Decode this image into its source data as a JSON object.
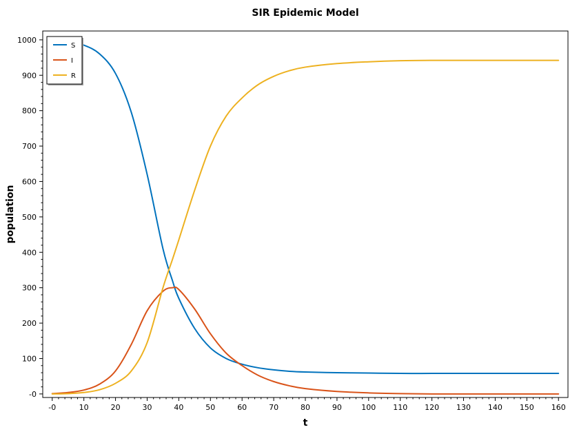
{
  "chart_data": {
    "type": "line",
    "title": "SIR Epidemic Model",
    "xlabel": "t",
    "ylabel": "population",
    "xlim": [
      -3,
      163
    ],
    "ylim": [
      -10,
      1025
    ],
    "x_ticks": [
      0,
      10,
      20,
      30,
      40,
      50,
      60,
      70,
      80,
      90,
      100,
      110,
      120,
      130,
      140,
      150,
      160
    ],
    "x_tick_labels": [
      "-0",
      "10",
      "20",
      "30",
      "40",
      "50",
      "60",
      "70",
      "80",
      "90",
      "100",
      "110",
      "120",
      "130",
      "140",
      "150",
      "160"
    ],
    "y_ticks": [
      0,
      100,
      200,
      300,
      400,
      500,
      600,
      700,
      800,
      900,
      1000
    ],
    "y_tick_labels": [
      "-0",
      "100",
      "200",
      "300",
      "400",
      "500",
      "600",
      "700",
      "800",
      "900",
      "1000"
    ],
    "grid": false,
    "legend_position": "top-left",
    "x": [
      0,
      5,
      10,
      15,
      20,
      25,
      30,
      35,
      38,
      40,
      45,
      50,
      55,
      60,
      65,
      70,
      75,
      80,
      90,
      100,
      110,
      120,
      130,
      140,
      150,
      160
    ],
    "series": [
      {
        "name": "S",
        "color": "#0072BD",
        "values": [
          999,
          995,
          985,
          960,
          905,
          795,
          620,
          410,
          320,
          270,
          185,
          130,
          100,
          84,
          74,
          68,
          64,
          62,
          60,
          59,
          58,
          58,
          58,
          58,
          58,
          58
        ]
      },
      {
        "name": "I",
        "color": "#D95319",
        "values": [
          1,
          4,
          11,
          28,
          65,
          140,
          235,
          290,
          300,
          295,
          240,
          170,
          115,
          80,
          53,
          35,
          23,
          15,
          7,
          3,
          1,
          0,
          0,
          0,
          0,
          0
        ]
      },
      {
        "name": "R",
        "color": "#EDB120",
        "values": [
          0,
          1,
          4,
          12,
          30,
          65,
          145,
          300,
          380,
          435,
          575,
          700,
          785,
          836,
          873,
          897,
          913,
          923,
          933,
          938,
          941,
          942,
          942,
          942,
          942,
          942
        ]
      }
    ]
  }
}
